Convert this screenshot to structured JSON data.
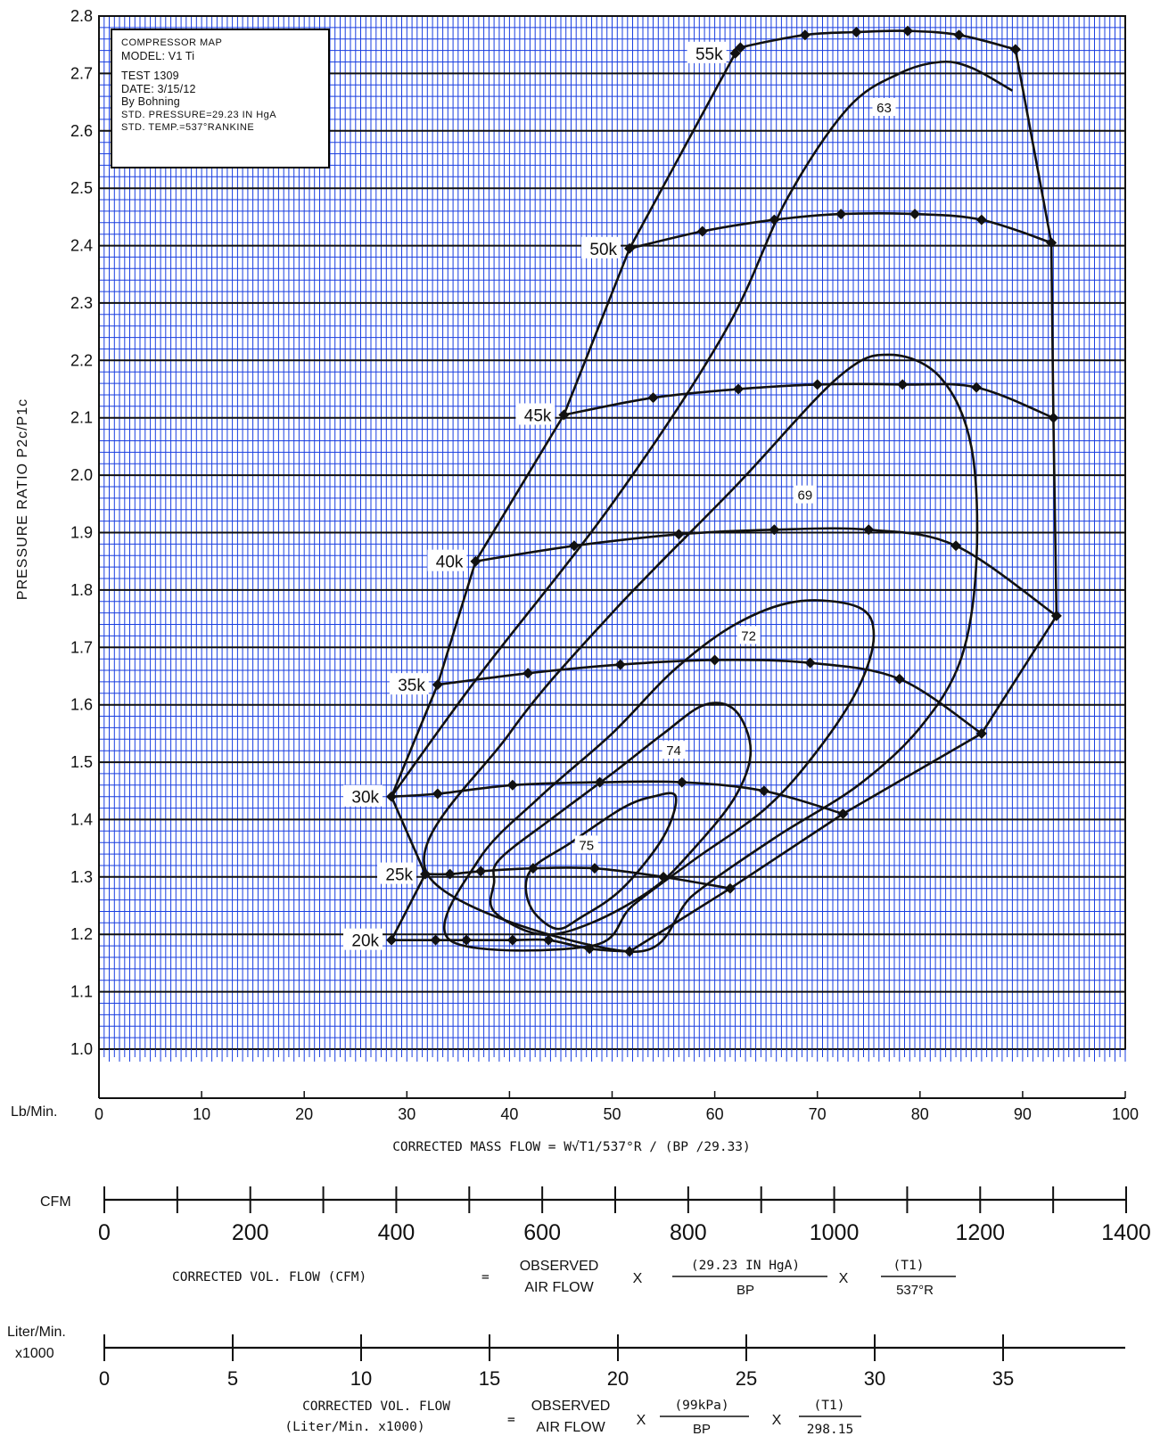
{
  "chart_data": {
    "type": "line",
    "title": "COMPRESSOR MAP",
    "info_box": {
      "title": "COMPRESSOR MAP",
      "model": "MODEL: V1 Ti",
      "test": "TEST  1309",
      "date": "DATE: 3/15/12",
      "by": "By Bohning",
      "std_pressure": "STD. PRESSURE=29.23 IN HgA",
      "std_temp": "STD. TEMP.=537°RANKINE"
    },
    "ylabel": "PRESSURE RATIO  P2c/P1c",
    "xlabel": "CORRECTED  MASS  FLOW  =  W√T1/537°R / (BP /29.33)",
    "x_unit_label": "Lb/Min.",
    "xlim": [
      0,
      100
    ],
    "ylim": [
      1.0,
      2.8
    ],
    "x_ticks": [
      "0",
      "10",
      "20",
      "30",
      "40",
      "50",
      "60",
      "70",
      "80",
      "90",
      "100"
    ],
    "y_ticks": [
      "1.0",
      "1.1",
      "1.2",
      "1.3",
      "1.4",
      "1.5",
      "1.6",
      "1.7",
      "1.8",
      "1.9",
      "2.0",
      "2.1",
      "2.2",
      "2.3",
      "2.4",
      "2.5",
      "2.6",
      "2.7",
      "2.8"
    ],
    "grid": true,
    "colors": {
      "grid": "#1a3fe0",
      "curves": "#111111",
      "background": "#ffffff"
    },
    "speed_lines": [
      {
        "label": "20k",
        "points": [
          [
            28.5,
            1.19
          ],
          [
            32.8,
            1.19
          ],
          [
            35.8,
            1.19
          ],
          [
            40.3,
            1.19
          ],
          [
            43.8,
            1.19
          ],
          [
            47.8,
            1.175
          ],
          [
            51.7,
            1.17
          ]
        ]
      },
      {
        "label": "25k",
        "points": [
          [
            31.8,
            1.305
          ],
          [
            34.2,
            1.305
          ],
          [
            37.2,
            1.31
          ],
          [
            42.3,
            1.315
          ],
          [
            48.3,
            1.315
          ],
          [
            55.0,
            1.3
          ],
          [
            61.5,
            1.28
          ]
        ]
      },
      {
        "label": "30k",
        "points": [
          [
            28.5,
            1.44
          ],
          [
            33.0,
            1.445
          ],
          [
            40.3,
            1.46
          ],
          [
            48.8,
            1.465
          ],
          [
            56.8,
            1.465
          ],
          [
            64.8,
            1.45
          ],
          [
            72.5,
            1.41
          ]
        ]
      },
      {
        "label": "35k",
        "points": [
          [
            33.0,
            1.635
          ],
          [
            41.8,
            1.655
          ],
          [
            50.8,
            1.67
          ],
          [
            60.0,
            1.678
          ],
          [
            69.3,
            1.673
          ],
          [
            78.0,
            1.645
          ],
          [
            86.0,
            1.55
          ]
        ]
      },
      {
        "label": "40k",
        "points": [
          [
            36.7,
            1.85
          ],
          [
            46.3,
            1.877
          ],
          [
            56.5,
            1.897
          ],
          [
            65.8,
            1.905
          ],
          [
            75.0,
            1.905
          ],
          [
            83.5,
            1.877
          ],
          [
            93.3,
            1.755
          ]
        ]
      },
      {
        "label": "45k",
        "points": [
          [
            45.3,
            2.105
          ],
          [
            54.0,
            2.135
          ],
          [
            62.3,
            2.15
          ],
          [
            70.0,
            2.158
          ],
          [
            78.3,
            2.158
          ],
          [
            85.5,
            2.153
          ],
          [
            93.0,
            2.1
          ]
        ]
      },
      {
        "label": "50k",
        "points": [
          [
            51.7,
            2.395
          ],
          [
            58.8,
            2.425
          ],
          [
            65.8,
            2.445
          ],
          [
            72.3,
            2.455
          ],
          [
            79.5,
            2.455
          ],
          [
            86.0,
            2.445
          ],
          [
            92.8,
            2.405
          ]
        ]
      },
      {
        "label": "55k",
        "points": [
          [
            62.0,
            2.735
          ],
          [
            62.5,
            2.745
          ],
          [
            68.8,
            2.767
          ],
          [
            73.8,
            2.772
          ],
          [
            78.8,
            2.774
          ],
          [
            83.8,
            2.767
          ],
          [
            89.3,
            2.742
          ]
        ]
      }
    ],
    "surge_line": [
      [
        28.5,
        1.19
      ],
      [
        31.8,
        1.305
      ],
      [
        28.5,
        1.44
      ],
      [
        33.0,
        1.635
      ],
      [
        36.7,
        1.85
      ],
      [
        45.3,
        2.105
      ],
      [
        51.7,
        2.395
      ],
      [
        62.0,
        2.735
      ]
    ],
    "choke_line": [
      [
        89.3,
        2.742
      ],
      [
        92.8,
        2.405
      ],
      [
        93.0,
        2.1
      ],
      [
        93.3,
        1.755
      ],
      [
        86.0,
        1.55
      ],
      [
        72.5,
        1.41
      ],
      [
        61.5,
        1.28
      ],
      [
        51.7,
        1.17
      ]
    ],
    "efficiency_islands": [
      {
        "label": "63",
        "label_pos": [
          76.5,
          2.64
        ]
      },
      {
        "label": "69",
        "label_pos": [
          68.8,
          1.965
        ]
      },
      {
        "label": "72",
        "label_pos": [
          63.3,
          1.72
        ]
      },
      {
        "label": "74",
        "label_pos": [
          56.0,
          1.52
        ]
      },
      {
        "label": "75",
        "label_pos": [
          47.5,
          1.355
        ]
      }
    ],
    "secondary_axes": [
      {
        "unit_label": "CFM",
        "range": [
          0,
          1400
        ],
        "ticks": [
          "0",
          "200",
          "400",
          "600",
          "800",
          "1000",
          "1200",
          "1400"
        ],
        "formula": {
          "lhs": "CORRECTED  VOL.  FLOW  (CFM)",
          "eq": "=",
          "num1": "OBSERVED",
          "den1": "AIR  FLOW",
          "x1": "X",
          "num2": "(29.23  IN  HgA)",
          "den2": "BP",
          "x2": "X",
          "num3": "(T1)",
          "den3": "537°R"
        }
      },
      {
        "unit_label": "Liter/Min.",
        "unit_label2": "x1000",
        "range": [
          0,
          35
        ],
        "ticks": [
          "0",
          "5",
          "10",
          "15",
          "20",
          "25",
          "30",
          "35"
        ],
        "formula": {
          "lhs1": "CORRECTED  VOL.  FLOW",
          "lhs2": "(Liter/Min. x1000)",
          "eq": "=",
          "num1": "OBSERVED",
          "den1": "AIR  FLOW",
          "x1": "X",
          "num2": "(99kPa)",
          "den2": "BP",
          "x2": "X",
          "num3": "(T1)",
          "den3": "298.15"
        }
      }
    ]
  }
}
